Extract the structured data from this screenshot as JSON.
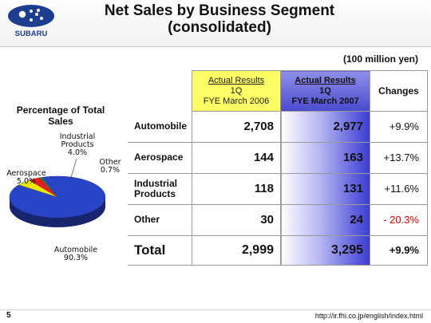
{
  "logo": {
    "brand": "SUBARU"
  },
  "title": {
    "line1": "Net Sales by Business Segment",
    "line2": "(consolidated)"
  },
  "units": "(100 million yen)",
  "pie": {
    "title": "Percentage of Total Sales",
    "labels": {
      "automobile": [
        "Automobile",
        "90.3%"
      ],
      "aerospace": [
        "Aerospace",
        "5.0%"
      ],
      "industrial": [
        "Industrial",
        "Products",
        "4.0%"
      ],
      "other": [
        "Other",
        "0.7%"
      ]
    }
  },
  "chart_data": {
    "type": "pie",
    "title": "Percentage of Total Sales",
    "categories": [
      "Automobile",
      "Aerospace",
      "Industrial Products",
      "Other"
    ],
    "values": [
      90.3,
      5.0,
      4.0,
      0.7
    ],
    "colors": [
      "#2a44c8",
      "#e8e800",
      "#e02020",
      "#2e8a3e"
    ]
  },
  "table": {
    "headers": {
      "prev": [
        "Actual Results",
        "1Q",
        "FYE March 2006"
      ],
      "curr": [
        "Actual Results",
        "1Q",
        "FYE March 2007"
      ],
      "changes": "Changes"
    },
    "rows": [
      {
        "label": "Automobile",
        "prev": "2,708",
        "curr": "2,977",
        "change": "+9.9%"
      },
      {
        "label": "Aerospace",
        "prev": "144",
        "curr": "163",
        "change": "+13.7%"
      },
      {
        "label": "Industrial Products",
        "prev": "118",
        "curr": "131",
        "change": "+11.6%"
      },
      {
        "label": "Other",
        "prev": "30",
        "curr": "24",
        "change": "- 20.3%"
      }
    ],
    "total": {
      "label": "Total",
      "prev": "2,999",
      "curr": "3,295",
      "change": "+9.9%"
    }
  },
  "footer": {
    "page": "5",
    "url": "http://ir.fhi.co.jp/english/index.html"
  },
  "colors": {
    "header_yellow": "#ffff66",
    "header_blue": "#4a4ad0",
    "negative": "#e00000"
  }
}
